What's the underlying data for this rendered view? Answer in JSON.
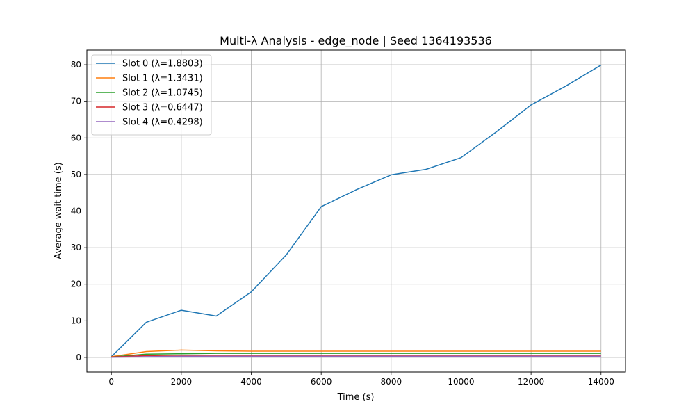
{
  "chart_data": {
    "type": "line",
    "title": "Multi-λ Analysis - edge_node | Seed 1364193536",
    "xlabel": "Time (s)",
    "ylabel": "Average wait time (s)",
    "xlim": [
      -700,
      14700
    ],
    "ylim": [
      -4,
      84
    ],
    "xticks": [
      0,
      2000,
      4000,
      6000,
      8000,
      10000,
      12000,
      14000
    ],
    "yticks": [
      0,
      10,
      20,
      30,
      40,
      50,
      60,
      70,
      80
    ],
    "grid": true,
    "legend_position": "top-left",
    "x": [
      0,
      1000,
      2000,
      3000,
      4000,
      5000,
      6000,
      7000,
      8000,
      9000,
      10000,
      11000,
      12000,
      13000,
      14000
    ],
    "series": [
      {
        "name": "Slot 0 (λ=1.8803)",
        "color": "#1f77b4",
        "values": [
          0.2,
          9.6,
          12.9,
          11.3,
          17.9,
          28.0,
          41.2,
          45.8,
          49.9,
          51.4,
          54.6,
          61.6,
          69.0,
          74.2,
          79.9
        ]
      },
      {
        "name": "Slot 1 (λ=1.3431)",
        "color": "#ff7f0e",
        "values": [
          0.2,
          1.6,
          2.0,
          1.8,
          1.7,
          1.7,
          1.7,
          1.7,
          1.7,
          1.7,
          1.7,
          1.7,
          1.7,
          1.7,
          1.7
        ]
      },
      {
        "name": "Slot 2 (λ=1.0745)",
        "color": "#2ca02c",
        "values": [
          0.1,
          0.9,
          1.0,
          1.1,
          1.1,
          1.1,
          1.1,
          1.1,
          1.1,
          1.1,
          1.1,
          1.1,
          1.1,
          1.1,
          1.1
        ]
      },
      {
        "name": "Slot 3 (λ=0.6447)",
        "color": "#d62728",
        "values": [
          0.1,
          0.5,
          0.6,
          0.6,
          0.6,
          0.6,
          0.6,
          0.6,
          0.6,
          0.6,
          0.6,
          0.6,
          0.6,
          0.6,
          0.6
        ]
      },
      {
        "name": "Slot 4 (λ=0.4298)",
        "color": "#9467bd",
        "values": [
          0.05,
          0.2,
          0.3,
          0.3,
          0.3,
          0.3,
          0.3,
          0.3,
          0.3,
          0.3,
          0.3,
          0.3,
          0.3,
          0.3,
          0.3
        ]
      }
    ]
  }
}
